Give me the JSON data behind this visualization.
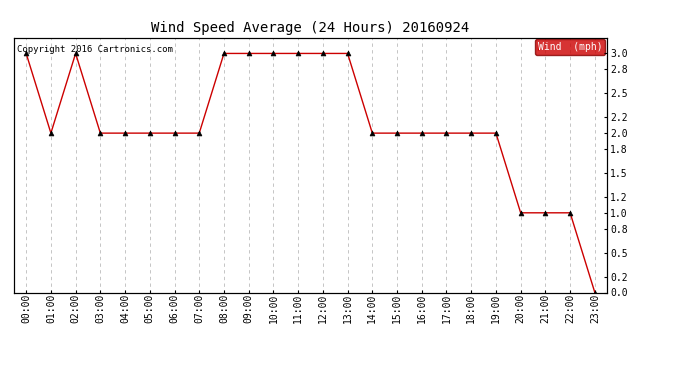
{
  "title": "Wind Speed Average (24 Hours) 20160924",
  "copyright_text": "Copyright 2016 Cartronics.com",
  "y_label_right": "Wind  (mph)",
  "background_color": "#ffffff",
  "grid_color": "#bbbbbb",
  "line_color": "#cc0000",
  "marker_color": "#000000",
  "legend_bg": "#cc0000",
  "legend_text_color": "#ffffff",
  "ylim": [
    0.0,
    3.2
  ],
  "yticks": [
    0.0,
    0.2,
    0.5,
    0.8,
    1.0,
    1.2,
    1.5,
    1.8,
    2.0,
    2.2,
    2.5,
    2.8,
    3.0
  ],
  "x_labels": [
    "00:00",
    "01:00",
    "02:00",
    "03:00",
    "04:00",
    "05:00",
    "06:00",
    "07:00",
    "08:00",
    "09:00",
    "10:00",
    "11:00",
    "12:00",
    "13:00",
    "14:00",
    "15:00",
    "16:00",
    "17:00",
    "18:00",
    "19:00",
    "20:00",
    "21:00",
    "22:00",
    "23:00"
  ],
  "x_values": [
    0,
    1,
    2,
    3,
    4,
    5,
    6,
    7,
    8,
    9,
    10,
    11,
    12,
    13,
    14,
    15,
    16,
    17,
    18,
    19,
    20,
    21,
    22,
    23
  ],
  "y_values": [
    3.0,
    2.0,
    3.0,
    2.0,
    2.0,
    2.0,
    2.0,
    2.0,
    3.0,
    3.0,
    3.0,
    3.0,
    3.0,
    3.0,
    2.0,
    2.0,
    2.0,
    2.0,
    2.0,
    2.0,
    1.0,
    1.0,
    1.0,
    0.0
  ],
  "title_fontsize": 10,
  "tick_fontsize": 7,
  "copyright_fontsize": 6.5
}
